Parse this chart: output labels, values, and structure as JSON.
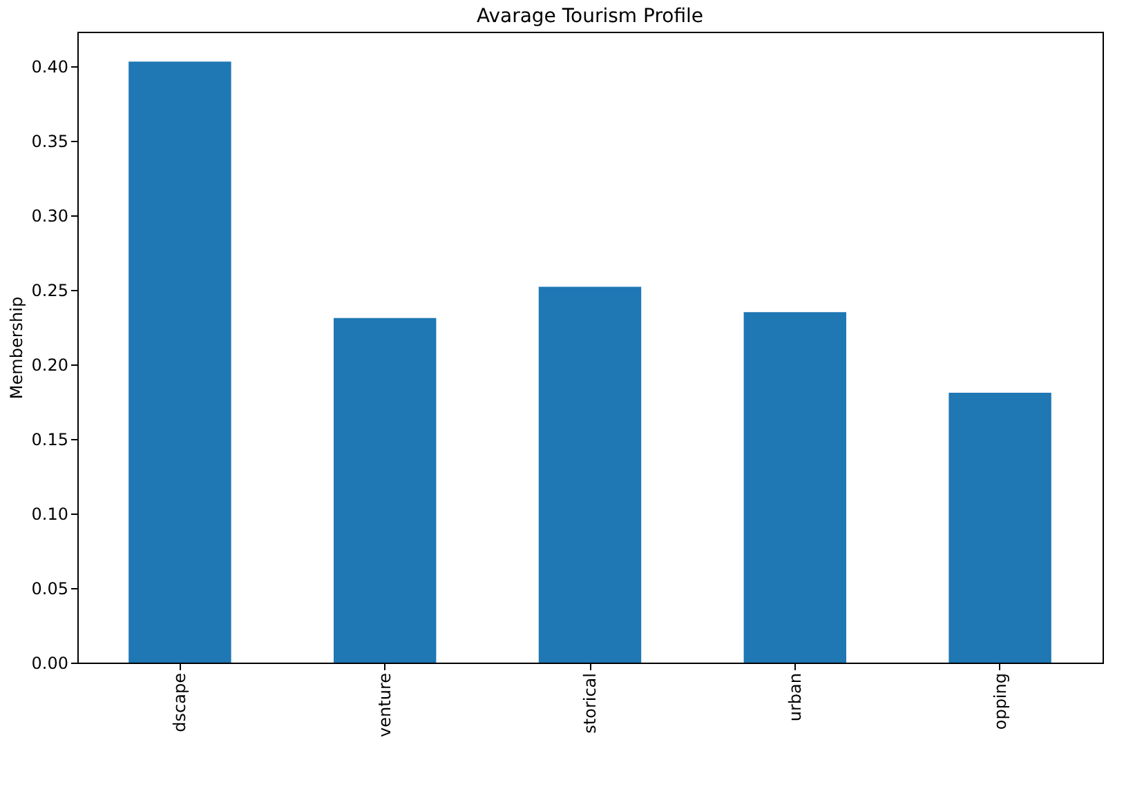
{
  "chart_data": {
    "type": "bar",
    "title": "Avarage Tourism Profile",
    "ylabel": "Membership",
    "categories": [
      "dscape",
      "venture",
      "storical",
      "urban",
      "opping"
    ],
    "values": [
      0.403,
      0.231,
      0.252,
      0.235,
      0.181
    ],
    "color": "#1f77b4",
    "ylim": [
      0,
      0.423
    ],
    "yticks": [
      {
        "value": 0,
        "label": "0.00"
      },
      {
        "value": 0.05,
        "label": "0.05"
      },
      {
        "value": 0.1,
        "label": "0.10"
      },
      {
        "value": 0.15,
        "label": "0.15"
      },
      {
        "value": 0.2,
        "label": "0.20"
      },
      {
        "value": 0.25,
        "label": "0.25"
      },
      {
        "value": 0.3,
        "label": "0.30"
      },
      {
        "value": 0.35,
        "label": "0.35"
      },
      {
        "value": 0.4,
        "label": "0.40"
      }
    ],
    "grid": false
  }
}
